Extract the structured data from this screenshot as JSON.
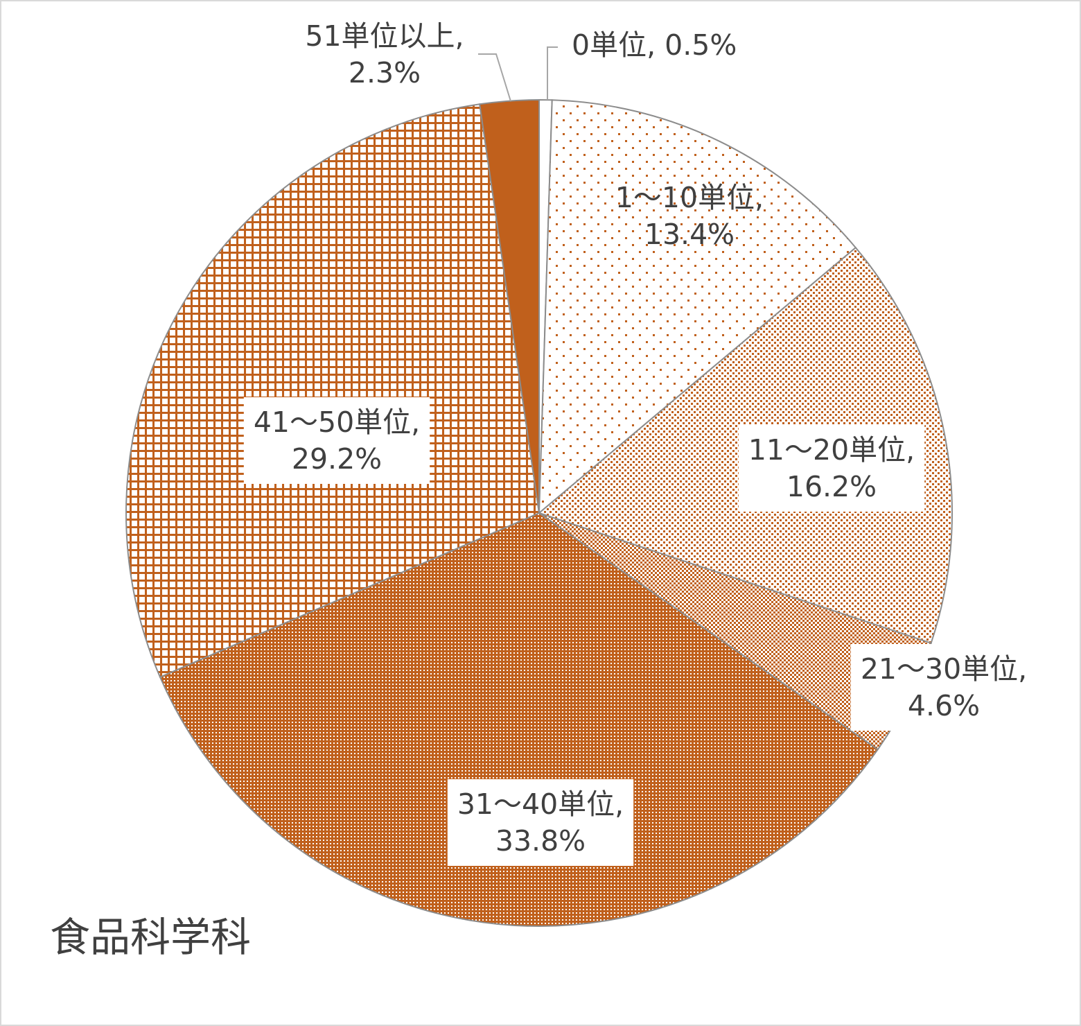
{
  "chart_data": {
    "type": "pie",
    "caption": "食品科学科",
    "slices": [
      {
        "label": "0単位",
        "value": 0.5,
        "value_text": "0.5%",
        "pattern": "none"
      },
      {
        "label": "1～10単位",
        "value": 13.4,
        "value_text": "13.4%",
        "pattern": "sparse-dots"
      },
      {
        "label": "11～20単位",
        "value": 16.2,
        "value_text": "16.2%",
        "pattern": "medium-dots"
      },
      {
        "label": "21～30単位",
        "value": 4.6,
        "value_text": "4.6%",
        "pattern": "checker"
      },
      {
        "label": "31～40単位",
        "value": 33.8,
        "value_text": "33.8%",
        "pattern": "dense-dots"
      },
      {
        "label": "41～50単位",
        "value": 29.2,
        "value_text": "29.2%",
        "pattern": "grid"
      },
      {
        "label": "51単位以上",
        "value": 2.3,
        "value_text": "2.3%",
        "pattern": "solid"
      }
    ],
    "colors": {
      "accent": "#c0601c",
      "edge": "#8c8c8c",
      "text": "#404040"
    }
  }
}
